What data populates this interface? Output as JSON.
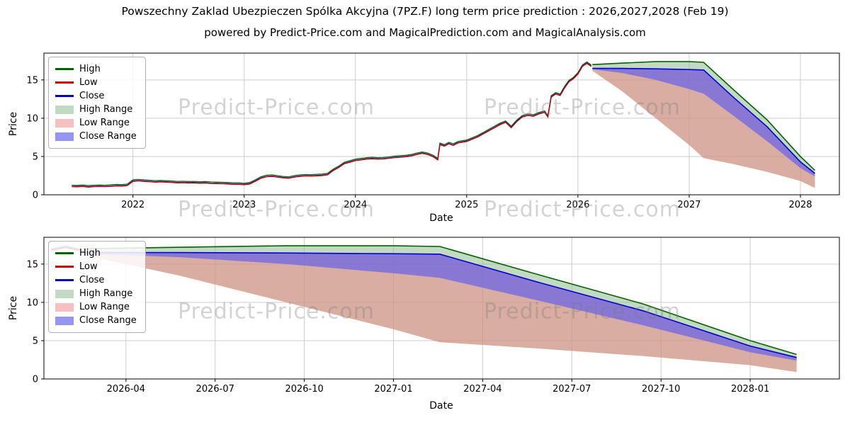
{
  "title": "Powszechny Zaklad Ubezpieczen Spólka Akcyjna (7PZ.F) long term price prediction : 2026,2027,2028 (Feb 19)",
  "subtitle": "powered by Predict-Price.com and MagicalPrediction.com and MagicalAnalysis.com",
  "watermark": "Predict-Price.com",
  "colors": {
    "high_line": "#006400",
    "low_line": "#d40000",
    "close_line": "#0000cd",
    "high_range_fill": "#8fbc8f",
    "low_range_fill": "#f08080",
    "close_range_fill": "#5c5cf0",
    "grid": "#cdcdcd",
    "axis": "#000000"
  },
  "legend": [
    {
      "label": "High",
      "kind": "line",
      "color": "#006400"
    },
    {
      "label": "Low",
      "kind": "line",
      "color": "#d40000"
    },
    {
      "label": "Close",
      "kind": "line",
      "color": "#0000cd"
    },
    {
      "label": "High Range",
      "kind": "patch",
      "color": "#c1dac1"
    },
    {
      "label": "Low Range",
      "kind": "patch",
      "color": "#f7bfbf"
    },
    {
      "label": "Close Range",
      "kind": "patch",
      "color": "#9595f5"
    }
  ],
  "chart_data": [
    {
      "type": "line",
      "panel": "full-history-with-forecast",
      "xlabel": "Date",
      "ylabel": "Price",
      "xlim": [
        2021.2,
        2028.35
      ],
      "ylim": [
        0,
        18.5
      ],
      "xticks": [
        2022,
        2023,
        2024,
        2025,
        2026,
        2027,
        2028
      ],
      "xtick_labels": [
        "2022",
        "2023",
        "2024",
        "2025",
        "2026",
        "2027",
        "2028"
      ],
      "yticks": [
        0,
        5,
        10,
        15
      ],
      "ytick_labels": [
        "0",
        "5",
        "10",
        "15"
      ],
      "series": {
        "historical_x": [
          2021.45,
          2021.5,
          2021.55,
          2021.6,
          2021.65,
          2021.7,
          2021.75,
          2021.8,
          2021.85,
          2021.9,
          2021.95,
          2022.0,
          2022.05,
          2022.1,
          2022.15,
          2022.2,
          2022.25,
          2022.3,
          2022.35,
          2022.4,
          2022.45,
          2022.5,
          2022.55,
          2022.6,
          2022.65,
          2022.7,
          2022.75,
          2022.8,
          2022.85,
          2022.9,
          2022.95,
          2023.0,
          2023.05,
          2023.1,
          2023.15,
          2023.2,
          2023.25,
          2023.3,
          2023.35,
          2023.4,
          2023.45,
          2023.5,
          2023.55,
          2023.6,
          2023.65,
          2023.7,
          2023.75,
          2023.8,
          2023.85,
          2023.9,
          2023.95,
          2024.0,
          2024.05,
          2024.1,
          2024.15,
          2024.2,
          2024.25,
          2024.3,
          2024.35,
          2024.4,
          2024.45,
          2024.5,
          2024.55,
          2024.6,
          2024.65,
          2024.7,
          2024.74,
          2024.76,
          2024.8,
          2024.84,
          2024.88,
          2024.92,
          2024.96,
          2025.0,
          2025.05,
          2025.1,
          2025.15,
          2025.2,
          2025.25,
          2025.3,
          2025.35,
          2025.4,
          2025.45,
          2025.5,
          2025.55,
          2025.6,
          2025.65,
          2025.7,
          2025.73,
          2025.76,
          2025.8,
          2025.84,
          2025.88,
          2025.92,
          2025.96,
          2026.0,
          2026.04,
          2026.08,
          2026.12
        ],
        "historical_close": [
          1.1,
          1.08,
          1.12,
          1.05,
          1.1,
          1.12,
          1.1,
          1.15,
          1.2,
          1.18,
          1.25,
          1.8,
          1.85,
          1.8,
          1.75,
          1.7,
          1.72,
          1.68,
          1.65,
          1.6,
          1.62,
          1.58,
          1.6,
          1.55,
          1.58,
          1.52,
          1.5,
          1.48,
          1.45,
          1.42,
          1.4,
          1.35,
          1.45,
          1.8,
          2.2,
          2.4,
          2.45,
          2.35,
          2.25,
          2.2,
          2.35,
          2.45,
          2.5,
          2.48,
          2.52,
          2.55,
          2.65,
          3.2,
          3.6,
          4.1,
          4.3,
          4.5,
          4.6,
          4.7,
          4.75,
          4.7,
          4.72,
          4.8,
          4.9,
          4.95,
          5.0,
          5.1,
          5.3,
          5.45,
          5.3,
          5.0,
          4.6,
          6.6,
          6.4,
          6.7,
          6.5,
          6.8,
          6.9,
          7.0,
          7.3,
          7.6,
          8.0,
          8.4,
          8.8,
          9.2,
          9.5,
          8.8,
          9.6,
          10.2,
          10.4,
          10.3,
          10.6,
          10.8,
          10.2,
          12.8,
          13.2,
          13.0,
          14.0,
          14.8,
          15.2,
          15.8,
          16.8,
          17.2,
          16.8
        ],
        "historical_high_offset": 0.15,
        "historical_low_offset": -0.05,
        "forecast_x": [
          2026.13,
          2026.4,
          2026.7,
          2027.0,
          2027.13,
          2027.4,
          2027.7,
          2028.0,
          2028.13
        ],
        "forecast_high": [
          17.0,
          17.2,
          17.4,
          17.4,
          17.3,
          13.7,
          9.8,
          5.0,
          3.2
        ],
        "forecast_close": [
          16.5,
          16.5,
          16.45,
          16.35,
          16.3,
          12.7,
          8.9,
          4.3,
          2.8
        ],
        "forecast_close_low": [
          16.4,
          15.9,
          15.0,
          13.8,
          13.2,
          10.3,
          7.0,
          3.5,
          2.4
        ],
        "forecast_low": [
          16.2,
          13.5,
          10.0,
          6.5,
          4.8,
          4.0,
          3.0,
          1.8,
          0.9
        ]
      }
    },
    {
      "type": "line",
      "panel": "forecast-detail",
      "xlabel": "Date",
      "ylabel": "Price",
      "xlim": [
        2026.02,
        2028.25
      ],
      "ylim": [
        0,
        18.5
      ],
      "xticks": [
        2026.25,
        2026.5,
        2026.75,
        2027.0,
        2027.25,
        2027.5,
        2027.75,
        2028.0
      ],
      "xtick_labels": [
        "2026-04",
        "2026-07",
        "2026-10",
        "2027-01",
        "2027-04",
        "2027-07",
        "2027-10",
        "2028-01"
      ],
      "yticks": [
        0,
        5,
        10,
        15
      ],
      "ytick_labels": [
        "0",
        "5",
        "10",
        "15"
      ],
      "series": {
        "historical_x": [
          2026.04,
          2026.08,
          2026.12
        ],
        "historical_close": [
          16.8,
          17.2,
          16.8
        ],
        "historical_high_offset": 0.15,
        "historical_low_offset": -0.05,
        "forecast_x": [
          2026.13,
          2026.4,
          2026.7,
          2027.0,
          2027.13,
          2027.4,
          2027.7,
          2028.0,
          2028.13
        ],
        "forecast_high": [
          17.0,
          17.2,
          17.4,
          17.4,
          17.3,
          13.7,
          9.8,
          5.0,
          3.2
        ],
        "forecast_close": [
          16.5,
          16.5,
          16.45,
          16.35,
          16.3,
          12.7,
          8.9,
          4.3,
          2.8
        ],
        "forecast_close_low": [
          16.4,
          15.9,
          15.0,
          13.8,
          13.2,
          10.3,
          7.0,
          3.5,
          2.4
        ],
        "forecast_low": [
          16.2,
          13.5,
          10.0,
          6.5,
          4.8,
          4.0,
          3.0,
          1.8,
          0.9
        ]
      }
    }
  ]
}
